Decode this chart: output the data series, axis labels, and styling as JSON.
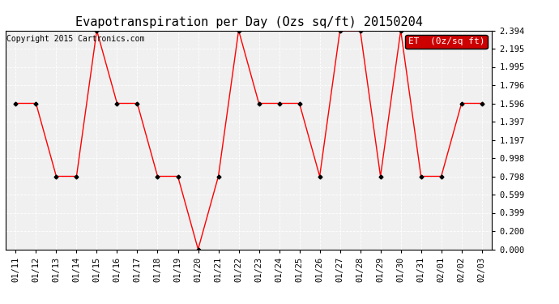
{
  "title": "Evapotranspiration per Day (Ozs sq/ft) 20150204",
  "copyright": "Copyright 2015 Cartronics.com",
  "legend_label": "ET  (0z/sq ft)",
  "dates": [
    "01/11",
    "01/12",
    "01/13",
    "01/14",
    "01/15",
    "01/16",
    "01/17",
    "01/18",
    "01/19",
    "01/20",
    "01/21",
    "01/22",
    "01/23",
    "01/24",
    "01/25",
    "01/26",
    "01/27",
    "01/28",
    "01/29",
    "01/30",
    "01/31",
    "02/01",
    "02/02",
    "02/03"
  ],
  "values": [
    1.596,
    1.596,
    0.798,
    0.798,
    2.394,
    1.596,
    1.596,
    0.798,
    0.798,
    0.0,
    0.798,
    2.394,
    1.596,
    1.596,
    1.596,
    0.798,
    2.394,
    2.394,
    0.798,
    2.394,
    0.798,
    0.798,
    1.596,
    1.596
  ],
  "ylim": [
    0.0,
    2.394
  ],
  "yticks": [
    0.0,
    0.2,
    0.399,
    0.599,
    0.798,
    0.998,
    1.197,
    1.397,
    1.596,
    1.796,
    1.995,
    2.195,
    2.394
  ],
  "line_color": "red",
  "marker_color": "black",
  "bg_color": "#ffffff",
  "plot_bg_color": "#f0f0f0",
  "legend_bg": "#cc0000",
  "legend_text_color": "white",
  "title_fontsize": 11,
  "copyright_fontsize": 7,
  "tick_fontsize": 7.5,
  "legend_fontsize": 8
}
